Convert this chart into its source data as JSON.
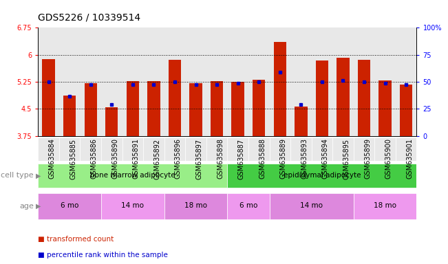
{
  "title": "GDS5226 / 10339514",
  "samples": [
    "GSM635884",
    "GSM635885",
    "GSM635886",
    "GSM635890",
    "GSM635891",
    "GSM635892",
    "GSM635896",
    "GSM635897",
    "GSM635898",
    "GSM635887",
    "GSM635888",
    "GSM635889",
    "GSM635893",
    "GSM635894",
    "GSM635895",
    "GSM635899",
    "GSM635900",
    "GSM635901"
  ],
  "bar_values": [
    5.88,
    4.87,
    5.22,
    4.55,
    5.27,
    5.27,
    5.87,
    5.22,
    5.27,
    5.25,
    5.3,
    6.35,
    4.57,
    5.85,
    5.92,
    5.87,
    5.28,
    5.17
  ],
  "percentile_values": [
    5.25,
    4.85,
    5.17,
    4.62,
    5.18,
    5.18,
    5.25,
    5.18,
    5.18,
    5.22,
    5.25,
    5.52,
    4.63,
    5.25,
    5.28,
    5.25,
    5.22,
    5.17
  ],
  "bar_color": "#cc2200",
  "dot_color": "#0000cc",
  "ylim_left": [
    3.75,
    6.75
  ],
  "ylim_right": [
    0,
    100
  ],
  "yticks_left": [
    3.75,
    4.5,
    5.25,
    6.0,
    6.75
  ],
  "ytick_labels_left": [
    "3.75",
    "4.5",
    "5.25",
    "6",
    "6.75"
  ],
  "yticks_right_vals": [
    0,
    25,
    50,
    75,
    100
  ],
  "ytick_labels_right": [
    "0",
    "25",
    "50",
    "75",
    "100%"
  ],
  "hlines": [
    4.5,
    5.25,
    6.0
  ],
  "cell_type_groups": [
    {
      "label": "bone marrow adipocyte",
      "start": 0,
      "end": 9,
      "color": "#99ee88"
    },
    {
      "label": "epididymal adipocyte",
      "start": 9,
      "end": 18,
      "color": "#44cc44"
    }
  ],
  "age_groups": [
    {
      "label": "6 mo",
      "start": 0,
      "end": 3,
      "color": "#dd88dd"
    },
    {
      "label": "14 mo",
      "start": 3,
      "end": 6,
      "color": "#ee99ee"
    },
    {
      "label": "18 mo",
      "start": 6,
      "end": 9,
      "color": "#dd88dd"
    },
    {
      "label": "6 mo",
      "start": 9,
      "end": 11,
      "color": "#ee99ee"
    },
    {
      "label": "14 mo",
      "start": 11,
      "end": 15,
      "color": "#dd88dd"
    },
    {
      "label": "18 mo",
      "start": 15,
      "end": 18,
      "color": "#ee99ee"
    }
  ],
  "cell_type_label": "cell type",
  "age_label": "age",
  "legend_items": [
    {
      "label": "transformed count",
      "color": "#cc2200"
    },
    {
      "label": "percentile rank within the sample",
      "color": "#0000cc"
    }
  ],
  "bar_width": 0.6,
  "background_color": "#e8e8e8",
  "plot_bg": "#ffffff",
  "title_fontsize": 10,
  "tick_fontsize": 7,
  "label_fontsize": 8
}
